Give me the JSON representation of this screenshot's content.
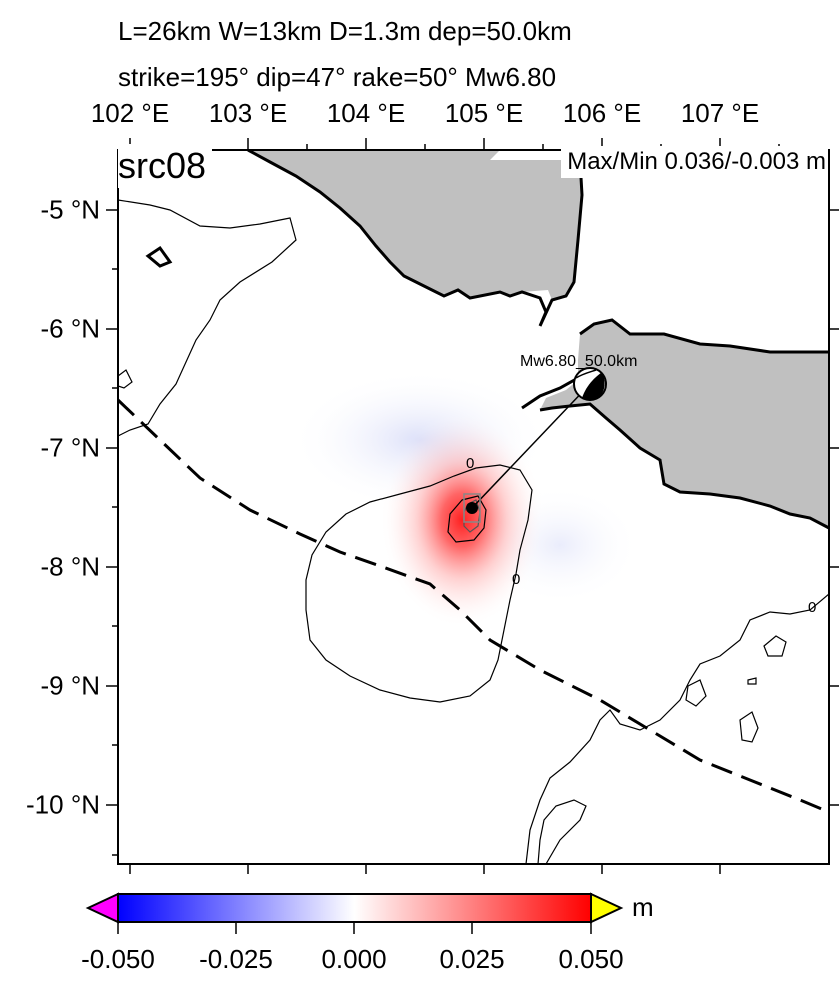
{
  "title_line1": "L=26km W=13km D=1.3m dep=50.0km",
  "title_line2": "strike=195° dip=47° rake=50° Mw6.80",
  "panel_label": "src08",
  "maxmin_label": "Max/Min 0.036/-0.003 m",
  "lon_ticks": [
    "102 °E",
    "103 °E",
    "104 °E",
    "105 °E",
    "106 °E",
    "107 °E"
  ],
  "lat_ticks": [
    "-5 °N",
    "-6 °N",
    "-7 °N",
    "-8 °N",
    "-9 °N",
    "-10 °N"
  ],
  "beachball_label": "Mw6.80_50.0km",
  "contour_labels": [
    "0",
    "0",
    "0"
  ],
  "colorbar": {
    "ticks": [
      "-0.050",
      "-0.025",
      "0.000",
      "0.025",
      "0.050"
    ],
    "unit": "m",
    "min": -0.05,
    "max": 0.05,
    "colors": {
      "min": "#0000ff",
      "mid": "#ffffff",
      "max": "#ff0000",
      "under": "#ff00ff",
      "over": "#ffff00"
    }
  },
  "map": {
    "lon_range": [
      101.9,
      108.0
    ],
    "lat_range": [
      -10.5,
      -4.8
    ],
    "epicenter": {
      "lon": 106.0,
      "lat": -6.5
    },
    "source": {
      "lon": 104.93,
      "lat": -7.5
    },
    "land_color": "#c0c0c0"
  }
}
